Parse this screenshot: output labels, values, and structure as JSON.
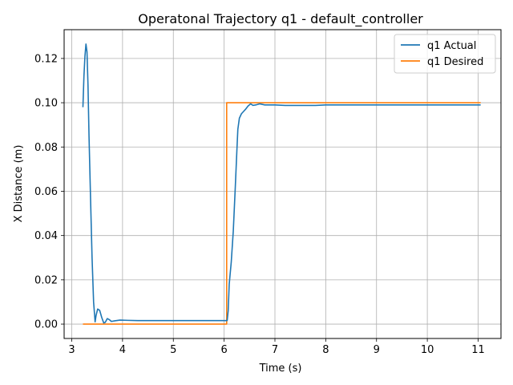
{
  "chart_data": {
    "type": "line",
    "title": "Operatonal Trajectory q1 - default_controller",
    "xlabel": "Time (s)",
    "ylabel": "X Distance (m)",
    "xlim": [
      2.85,
      11.45
    ],
    "ylim": [
      -0.0065,
      0.133
    ],
    "xticks": [
      3,
      4,
      5,
      6,
      7,
      8,
      9,
      10,
      11
    ],
    "yticks": [
      0.0,
      0.02,
      0.04,
      0.06,
      0.08,
      0.1,
      0.12
    ],
    "ytick_labels": [
      "0.00",
      "0.02",
      "0.04",
      "0.06",
      "0.08",
      "0.10",
      "0.12"
    ],
    "grid": true,
    "legend_position": "top-right",
    "series": [
      {
        "name": "q1 Actual",
        "color": "#1f77b4",
        "points": [
          [
            3.22,
            0.098
          ],
          [
            3.24,
            0.112
          ],
          [
            3.26,
            0.121
          ],
          [
            3.28,
            0.1265
          ],
          [
            3.3,
            0.123
          ],
          [
            3.32,
            0.108
          ],
          [
            3.34,
            0.085
          ],
          [
            3.37,
            0.057
          ],
          [
            3.4,
            0.03
          ],
          [
            3.43,
            0.01
          ],
          [
            3.46,
            0.001
          ],
          [
            3.48,
            0.004
          ],
          [
            3.51,
            0.0068
          ],
          [
            3.55,
            0.0062
          ],
          [
            3.59,
            0.003
          ],
          [
            3.63,
            0.0005
          ],
          [
            3.66,
            0.0008
          ],
          [
            3.7,
            0.0025
          ],
          [
            3.74,
            0.002
          ],
          [
            3.78,
            0.0012
          ],
          [
            3.85,
            0.0015
          ],
          [
            3.95,
            0.0018
          ],
          [
            4.1,
            0.0017
          ],
          [
            4.3,
            0.0016
          ],
          [
            4.6,
            0.0016
          ],
          [
            5.0,
            0.0016
          ],
          [
            5.5,
            0.0016
          ],
          [
            6.0,
            0.0016
          ],
          [
            6.06,
            0.0016
          ],
          [
            6.08,
            0.006
          ],
          [
            6.1,
            0.018
          ],
          [
            6.14,
            0.028
          ],
          [
            6.18,
            0.042
          ],
          [
            6.22,
            0.062
          ],
          [
            6.25,
            0.078
          ],
          [
            6.27,
            0.088
          ],
          [
            6.3,
            0.093
          ],
          [
            6.34,
            0.095
          ],
          [
            6.38,
            0.096
          ],
          [
            6.42,
            0.097
          ],
          [
            6.47,
            0.0985
          ],
          [
            6.52,
            0.0995
          ],
          [
            6.57,
            0.0988
          ],
          [
            6.62,
            0.099
          ],
          [
            6.7,
            0.0995
          ],
          [
            6.8,
            0.099
          ],
          [
            7.0,
            0.099
          ],
          [
            7.2,
            0.0988
          ],
          [
            7.5,
            0.0988
          ],
          [
            7.8,
            0.0988
          ],
          [
            8.0,
            0.099
          ],
          [
            9.0,
            0.099
          ],
          [
            10.0,
            0.099
          ],
          [
            11.05,
            0.099
          ]
        ]
      },
      {
        "name": "q1 Desired",
        "color": "#ff7f0e",
        "points": [
          [
            3.22,
            0.0
          ],
          [
            6.05,
            0.0
          ],
          [
            6.05,
            0.1
          ],
          [
            11.05,
            0.1
          ]
        ]
      }
    ]
  }
}
